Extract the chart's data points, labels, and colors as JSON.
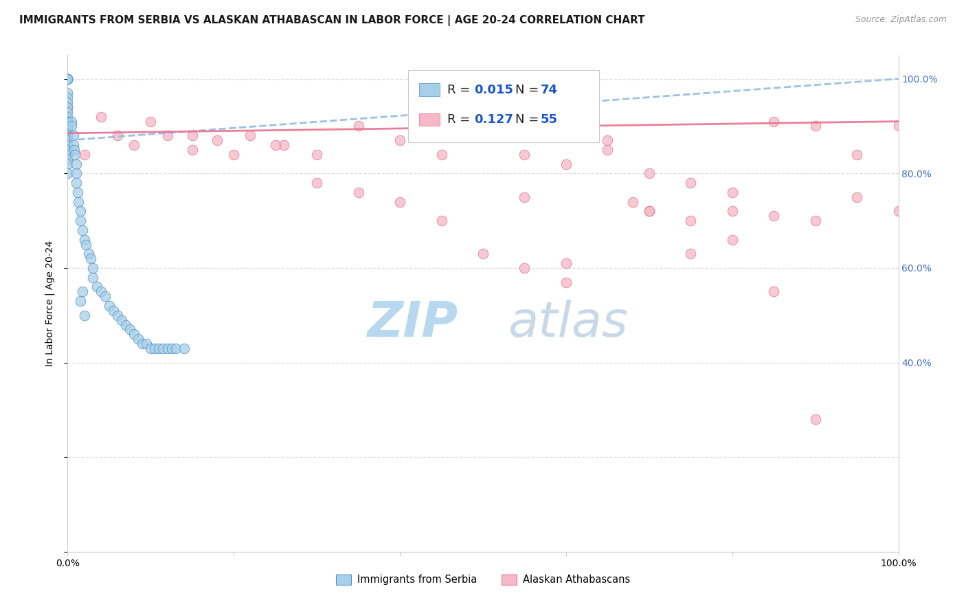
{
  "title": "IMMIGRANTS FROM SERBIA VS ALASKAN ATHABASCAN IN LABOR FORCE | AGE 20-24 CORRELATION CHART",
  "source": "Source: ZipAtlas.com",
  "ylabel": "In Labor Force | Age 20-24",
  "watermark_zip": "ZIP",
  "watermark_atlas": "atlas",
  "legend_r1": "R = ",
  "legend_v1": "0.015",
  "legend_n1_label": "N = ",
  "legend_n1": "74",
  "legend_r2": "R = ",
  "legend_v2": "0.127",
  "legend_n2_label": "N = ",
  "legend_n2": "55",
  "color_blue": "#a8cfe8",
  "color_pink": "#f5b8c8",
  "color_blue_edge": "#5090c8",
  "color_pink_edge": "#e07090",
  "color_blue_line": "#90bce0",
  "color_pink_line": "#e87090",
  "bg_color": "#ffffff",
  "grid_color": "#e0dce8",
  "right_tick_color": "#4472c4",
  "legend_text_color": "#222222",
  "legend_val_color": "#1a56c8",
  "source_color": "#999999",
  "blue_x": [
    0.0,
    0.0,
    0.0,
    0.0,
    0.0,
    0.0,
    0.0,
    0.0,
    0.0,
    0.0,
    0.0,
    0.0,
    0.0,
    0.0,
    0.0,
    0.0,
    0.0,
    0.0,
    0.0,
    0.0,
    0.0,
    0.0,
    0.0,
    0.0,
    0.0,
    0.0,
    0.0,
    0.0,
    0.0,
    0.0,
    0.005,
    0.005,
    0.007,
    0.007,
    0.008,
    0.009,
    0.01,
    0.01,
    0.01,
    0.012,
    0.013,
    0.015,
    0.015,
    0.018,
    0.02,
    0.022,
    0.025,
    0.028,
    0.03,
    0.03,
    0.035,
    0.04,
    0.045,
    0.05,
    0.055,
    0.06,
    0.065,
    0.07,
    0.075,
    0.08,
    0.085,
    0.09,
    0.095,
    0.1,
    0.105,
    0.11,
    0.115,
    0.12,
    0.125,
    0.13,
    0.14,
    0.015,
    0.018,
    0.02
  ],
  "blue_y": [
    1.0,
    1.0,
    1.0,
    1.0,
    1.0,
    1.0,
    0.97,
    0.96,
    0.95,
    0.94,
    0.93,
    0.92,
    0.91,
    0.91,
    0.91,
    0.9,
    0.9,
    0.9,
    0.89,
    0.89,
    0.88,
    0.87,
    0.87,
    0.86,
    0.86,
    0.85,
    0.84,
    0.83,
    0.82,
    0.8,
    0.91,
    0.9,
    0.88,
    0.86,
    0.85,
    0.84,
    0.82,
    0.8,
    0.78,
    0.76,
    0.74,
    0.72,
    0.7,
    0.68,
    0.66,
    0.65,
    0.63,
    0.62,
    0.6,
    0.58,
    0.56,
    0.55,
    0.54,
    0.52,
    0.51,
    0.5,
    0.49,
    0.48,
    0.47,
    0.46,
    0.45,
    0.44,
    0.44,
    0.43,
    0.43,
    0.43,
    0.43,
    0.43,
    0.43,
    0.43,
    0.43,
    0.53,
    0.55,
    0.5
  ],
  "pink_x": [
    0.0,
    0.0,
    0.0,
    0.02,
    0.04,
    0.06,
    0.08,
    0.1,
    0.12,
    0.15,
    0.18,
    0.22,
    0.26,
    0.3,
    0.35,
    0.4,
    0.45,
    0.5,
    0.55,
    0.6,
    0.65,
    0.7,
    0.75,
    0.8,
    0.85,
    0.9,
    0.95,
    1.0,
    0.3,
    0.35,
    0.4,
    0.45,
    0.5,
    0.55,
    0.6,
    0.65,
    0.7,
    0.75,
    0.8,
    0.85,
    0.9,
    0.95,
    1.0,
    0.15,
    0.2,
    0.25,
    0.5,
    0.55,
    0.6,
    0.68,
    0.7,
    0.75,
    0.8,
    0.85,
    0.9
  ],
  "pink_y": [
    0.94,
    0.88,
    0.84,
    0.84,
    0.92,
    0.88,
    0.86,
    0.91,
    0.88,
    0.88,
    0.87,
    0.88,
    0.86,
    0.84,
    0.9,
    0.87,
    0.84,
    0.91,
    0.84,
    0.82,
    0.85,
    0.8,
    0.78,
    0.76,
    0.91,
    0.9,
    0.84,
    0.9,
    0.78,
    0.76,
    0.74,
    0.7,
    0.63,
    0.6,
    0.57,
    0.87,
    0.72,
    0.7,
    0.72,
    0.55,
    0.7,
    0.75,
    0.72,
    0.85,
    0.84,
    0.86,
    0.88,
    0.75,
    0.61,
    0.74,
    0.72,
    0.63,
    0.66,
    0.71,
    0.28
  ],
  "blue_trend": [
    0.87,
    1.0
  ],
  "pink_trend": [
    0.885,
    0.91
  ],
  "xlim": [
    0.0,
    1.0
  ],
  "ylim": [
    0.0,
    1.05
  ],
  "ytick_right_vals": [
    0.4,
    0.6,
    0.8,
    1.0
  ],
  "ytick_right_labels": [
    "40.0%",
    "60.0%",
    "80.0%",
    "100.0%"
  ],
  "xtick_vals": [
    0.0,
    0.2,
    0.4,
    0.6,
    0.8,
    1.0
  ],
  "xtick_labels": [
    "0.0%",
    "",
    "",
    "",
    "",
    "100.0%"
  ],
  "title_fontsize": 11,
  "axis_label_fontsize": 10,
  "tick_fontsize": 10,
  "legend_fontsize": 13,
  "watermark_fontsize_zip": 52,
  "watermark_fontsize_atlas": 52
}
